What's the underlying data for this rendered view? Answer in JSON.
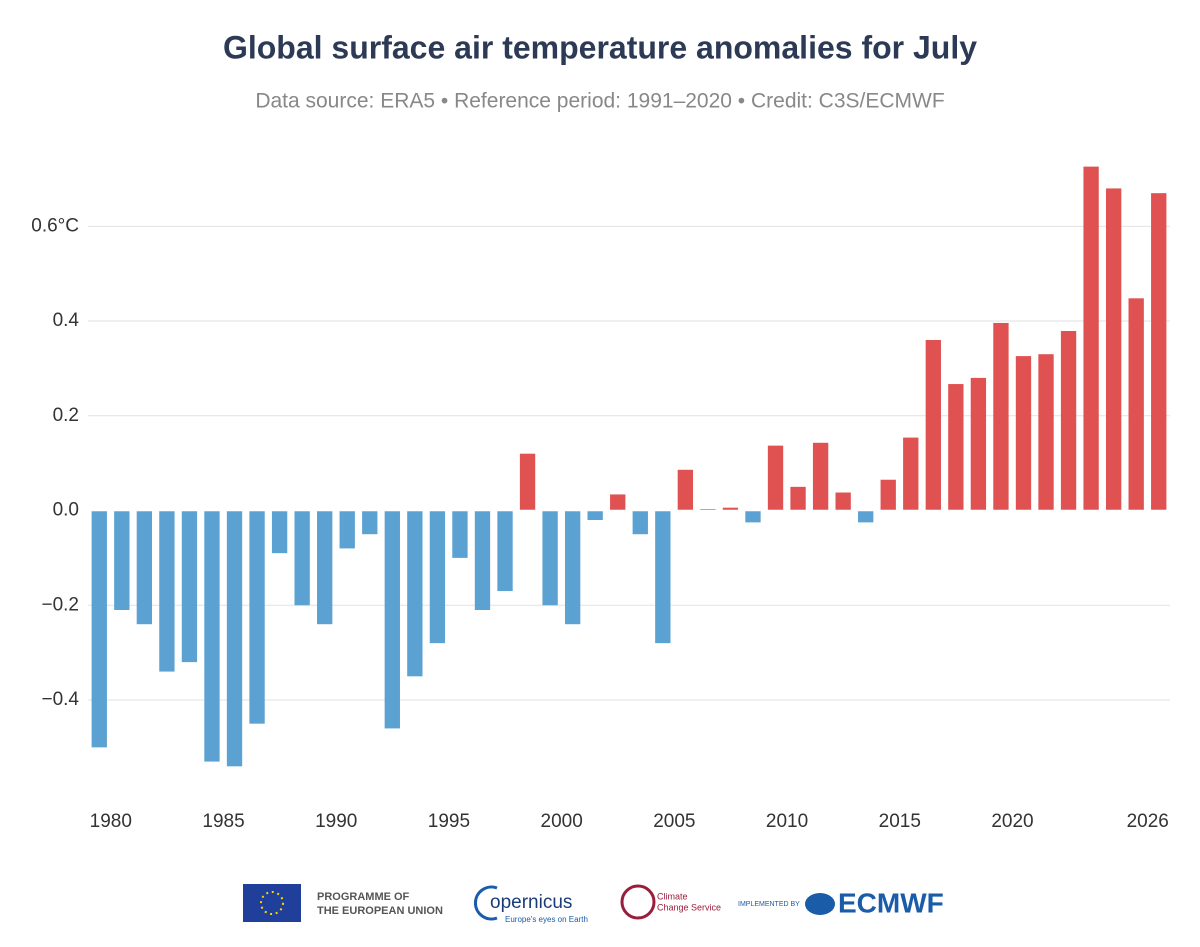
{
  "chart_data": {
    "type": "bar",
    "title": "Global surface air temperature anomalies for July",
    "subtitle": "Data source: ERA5 • Reference period: 1991–2020 • Credit: C3S/ECMWF",
    "x": [
      1979,
      1980,
      1981,
      1982,
      1983,
      1984,
      1985,
      1986,
      1987,
      1988,
      1989,
      1990,
      1991,
      1992,
      1993,
      1994,
      1995,
      1996,
      1997,
      1998,
      1999,
      2000,
      2001,
      2002,
      2003,
      2004,
      2005,
      2006,
      2007,
      2008,
      2009,
      2010,
      2011,
      2012,
      2013,
      2014,
      2015,
      2016,
      2017,
      2018,
      2019,
      2020,
      2021,
      2022,
      2023,
      2024,
      2025,
      2026
    ],
    "values": [
      -0.5,
      -0.21,
      -0.24,
      -0.34,
      -0.32,
      -0.53,
      -0.54,
      -0.45,
      -0.09,
      -0.2,
      -0.24,
      -0.08,
      -0.05,
      -0.46,
      -0.35,
      -0.28,
      -0.1,
      -0.21,
      -0.17,
      0.12,
      -0.2,
      -0.24,
      -0.02,
      0.034,
      -0.05,
      -0.28,
      0.086,
      0.003,
      0.006,
      -0.025,
      0.137,
      0.05,
      0.143,
      0.038,
      -0.025,
      0.065,
      0.154,
      0.36,
      0.267,
      0.28,
      0.396,
      0.326,
      0.33,
      0.379,
      0.726,
      0.68,
      0.448,
      0.67
    ],
    "positive_color": "#e05252",
    "negative_color": "#5ba2d2",
    "xlim": [
      1978.5,
      2026.5
    ],
    "xticks": [
      1980,
      1985,
      1990,
      1995,
      2000,
      2005,
      2010,
      2015,
      2020,
      2026
    ],
    "ylim": [
      -0.59,
      0.74
    ],
    "yticks": [
      {
        "value": -0.4,
        "label": "−0.4"
      },
      {
        "value": -0.2,
        "label": "−0.2"
      },
      {
        "value": 0,
        "label": "0.0"
      },
      0.2,
      0.4,
      {
        "value": 0.6,
        "label": "0.6°C"
      }
    ],
    "grid": true
  },
  "footer": {
    "eu": [
      "PROGRAMME OF",
      "THE EUROPEAN UNION"
    ],
    "copernicus": "opernicus",
    "copernicus_tagline": "Europe's eyes on Earth",
    "c3s": [
      "Climate",
      "Change Service"
    ],
    "implemented": "IMPLEMENTED BY",
    "ecmwf": "ECMWF"
  }
}
